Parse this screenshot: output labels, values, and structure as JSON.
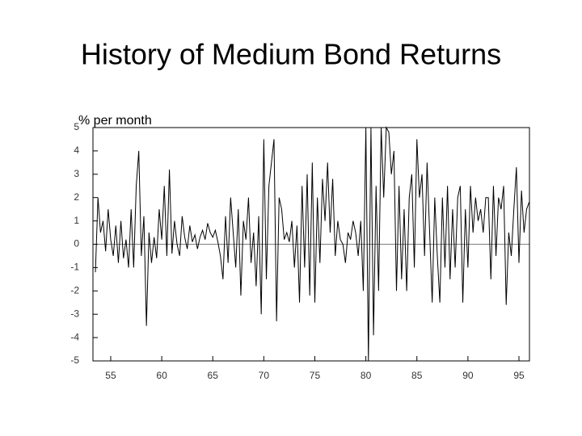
{
  "chart_data": {
    "type": "line",
    "title": "History of Medium Bond Returns",
    "annotation": "% per month",
    "color": "#000000",
    "x": [
      53.5,
      53.75,
      54,
      54.25,
      54.5,
      54.75,
      55,
      55.25,
      55.5,
      55.75,
      56,
      56.25,
      56.5,
      56.75,
      57,
      57.25,
      57.5,
      57.75,
      58,
      58.25,
      58.5,
      58.75,
      59,
      59.25,
      59.5,
      59.75,
      60,
      60.25,
      60.5,
      60.75,
      61,
      61.25,
      61.5,
      61.75,
      62,
      62.25,
      62.5,
      62.75,
      63,
      63.25,
      63.5,
      63.75,
      64,
      64.25,
      64.5,
      64.75,
      65,
      65.25,
      65.5,
      65.75,
      66,
      66.25,
      66.5,
      66.75,
      67,
      67.25,
      67.5,
      67.75,
      68,
      68.25,
      68.5,
      68.75,
      69,
      69.25,
      69.5,
      69.75,
      70,
      70.25,
      70.5,
      70.75,
      71,
      71.25,
      71.5,
      71.75,
      72,
      72.25,
      72.5,
      72.75,
      73,
      73.25,
      73.5,
      73.75,
      74,
      74.25,
      74.5,
      74.75,
      75,
      75.25,
      75.5,
      75.75,
      76,
      76.25,
      76.5,
      76.75,
      77,
      77.25,
      77.5,
      77.75,
      78,
      78.25,
      78.5,
      78.75,
      79,
      79.25,
      79.5,
      79.75,
      80,
      80.25,
      80.5,
      80.75,
      81,
      81.25,
      81.5,
      81.75,
      82,
      82.25,
      82.5,
      82.75,
      83,
      83.25,
      83.5,
      83.75,
      84,
      84.25,
      84.5,
      84.75,
      85,
      85.25,
      85.5,
      85.75,
      86,
      86.25,
      86.5,
      86.75,
      87,
      87.25,
      87.5,
      87.75,
      88,
      88.25,
      88.5,
      88.75,
      89,
      89.25,
      89.5,
      89.75,
      90,
      90.25,
      90.5,
      90.75,
      91,
      91.25,
      91.5,
      91.75,
      92,
      92.25,
      92.5,
      92.75,
      93,
      93.25,
      93.5,
      93.75,
      94,
      94.25,
      94.5,
      94.75,
      95,
      95.25,
      95.5,
      95.75,
      96
    ],
    "values": [
      -1.2,
      2.0,
      0.5,
      1.0,
      -0.3,
      1.5,
      0.2,
      -0.5,
      0.8,
      -0.8,
      1.0,
      -0.6,
      0.2,
      -1.0,
      1.5,
      -1.0,
      2.5,
      4.0,
      -0.5,
      1.2,
      -3.5,
      0.5,
      -0.8,
      0.3,
      -0.6,
      1.5,
      0.2,
      2.5,
      -0.5,
      3.2,
      -0.4,
      1.0,
      0.0,
      -0.5,
      1.2,
      0.3,
      -0.2,
      0.8,
      0.1,
      0.4,
      -0.2,
      0.3,
      0.6,
      0.2,
      0.9,
      0.5,
      0.3,
      0.6,
      0.1,
      -0.5,
      -1.5,
      1.2,
      -0.8,
      2.0,
      0.5,
      -1.0,
      1.5,
      -2.2,
      1.0,
      0.2,
      2.0,
      -0.8,
      0.5,
      -1.8,
      1.2,
      -3.0,
      4.5,
      -1.5,
      2.5,
      3.5,
      4.5,
      -3.3,
      2.0,
      1.5,
      0.2,
      0.5,
      0.1,
      1.0,
      -1.0,
      0.8,
      -2.5,
      2.5,
      -1.0,
      3.0,
      -2.2,
      3.5,
      -2.5,
      2.0,
      -0.8,
      2.8,
      1.0,
      3.5,
      0.5,
      2.8,
      -0.5,
      1.0,
      0.2,
      0.0,
      -0.8,
      0.5,
      0.2,
      1.0,
      0.5,
      -0.5,
      1.0,
      -2.0,
      5.0,
      -5.0,
      5.0,
      -3.9,
      2.5,
      -2.0,
      5.0,
      2.0,
      5.0,
      4.8,
      3.0,
      4.0,
      -2.0,
      2.5,
      -1.5,
      1.5,
      -2.0,
      2.0,
      3.0,
      -1.0,
      4.5,
      2.0,
      3.0,
      -0.5,
      3.5,
      0.5,
      -2.5,
      2.0,
      -0.5,
      -2.5,
      2.0,
      -1.0,
      2.5,
      -1.5,
      1.5,
      -1.0,
      2.0,
      2.5,
      -2.5,
      1.5,
      -1.0,
      2.5,
      0.5,
      2.0,
      1.0,
      1.5,
      0.5,
      2.0,
      2.0,
      -1.5,
      2.5,
      -0.5,
      2.0,
      1.5,
      2.5,
      -2.6,
      0.5,
      -0.5,
      1.5,
      3.3,
      -0.8,
      2.3,
      0.5,
      1.5,
      1.8
    ],
    "xlim": [
      53.26,
      96.03
    ],
    "xticks": [
      55,
      60,
      65,
      70,
      75,
      80,
      85,
      90,
      95
    ],
    "ylim": [
      -5,
      5
    ],
    "yticks": [
      5,
      4,
      3,
      2,
      1,
      0,
      -1,
      -2,
      -3,
      -4,
      -5
    ]
  }
}
